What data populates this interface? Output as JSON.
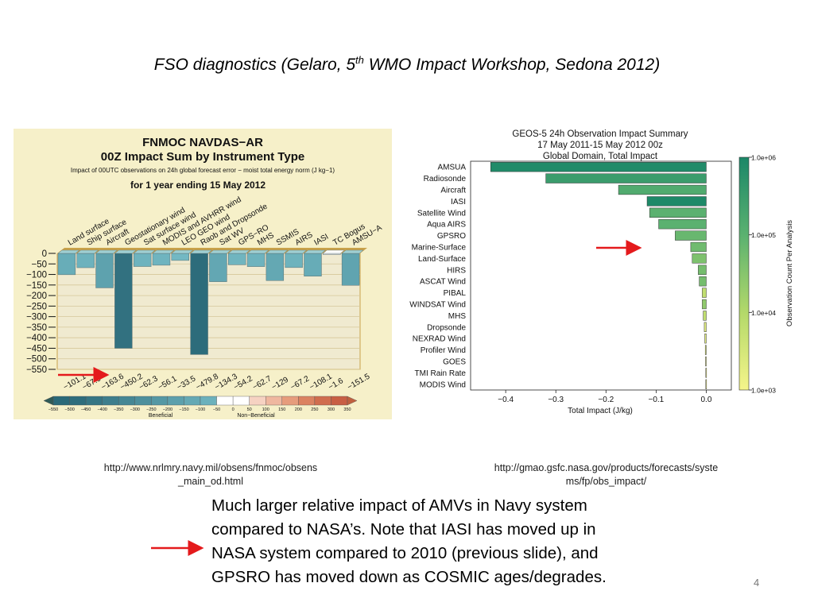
{
  "slide": {
    "title_main": "FSO diagnostics (Gelaro, 5",
    "title_sup": "th",
    "title_rest": " WMO Impact Workshop, Sedona 2012)",
    "url_left_line1": "http://www.nrlmry.navy.mil/obsens/fnmoc/obsens",
    "url_left_line2": "_main_od.html",
    "url_right_line1": "http://gmao.gsfc.nasa.gov/products/forecasts/syste",
    "url_right_line2": "ms/fp/obs_impact/",
    "bullet_lines": [
      "Much larger relative impact of AMVs in Navy system",
      "compared to NASA’s.   Note that IASI has moved up in",
      "NASA system compared to 2010 (previous slide), and",
      "GPSRO has moved down as COSMIC ages/degrades."
    ],
    "page_number": "4"
  },
  "chart_data": [
    {
      "type": "bar",
      "title": "FNMOC NAVDAS−AR",
      "subtitle": "00Z Impact Sum by Instrument Type",
      "description": "Impact of 00UTC observations on 24h global forecast error − moist total energy norm (J kg−1)",
      "period": "for 1 year ending 15 May 2012",
      "categories": [
        "Land surface",
        "Ship surface",
        "Aircraft",
        "Geostationary wind",
        "Sat surface wind",
        "MODIS and AVHRR wind",
        "LEO GEO wind",
        "Raob and Dropsonde",
        "Sat WV",
        "GPS−RO",
        "MHS",
        "SSMIS",
        "AIRS",
        "IASI",
        "TC Bogus",
        "AMSU−A"
      ],
      "values": [
        -101.1,
        -67.9,
        -163.6,
        -450.2,
        -62.3,
        -56.1,
        -33.5,
        -479.8,
        -134.3,
        -54.2,
        -62.7,
        -129,
        -67.2,
        -108.1,
        -1.6,
        -151.5
      ],
      "value_labels": [
        "−101.1",
        "−67.9",
        "−163.6",
        "−450.2",
        "−62.3",
        "−56.1",
        "−33.5",
        "−479.8",
        "−134.3",
        "−54.2",
        "−62.7",
        "−129",
        "−67.2",
        "−108.1",
        "−1.6",
        "−151.5"
      ],
      "yticks": [
        "0",
        "−50",
        "−100",
        "−150",
        "−200",
        "−250",
        "−300",
        "−350",
        "−400",
        "−450",
        "−500",
        "−550"
      ],
      "ylim": [
        -550,
        0
      ],
      "colorbar": {
        "ticks": [
          "−550",
          "−500",
          "−450",
          "−400",
          "−350",
          "−300",
          "−250",
          "−200",
          "−150",
          "−100",
          "−50",
          "0",
          "50",
          "100",
          "150",
          "200",
          "250",
          "300",
          "350"
        ],
        "label_left": "Beneficial",
        "label_right": "Non−Beneficial"
      },
      "highlighted_category": "Aircraft",
      "colors": {
        "background": "#f6f0c9",
        "plot": "#f0ead0",
        "grid": "#d6c89a",
        "frame": "#c9a24a"
      }
    },
    {
      "type": "bar",
      "orientation": "horizontal",
      "title": "GEOS-5 24h Observation Impact Summary",
      "subtitle1": "17 May 2011-15 May 2012 00z",
      "subtitle2": "Global Domain, Total Impact",
      "xlabel": "Total Impact (J/kg)",
      "xlim": [
        -0.47,
        0.05
      ],
      "xticks": [
        "−0.4",
        "−0.3",
        "−0.2",
        "−0.1",
        "0.0"
      ],
      "categories": [
        "AMSUA",
        "Radiosonde",
        "Aircraft",
        "IASI",
        "Satellite Wind",
        "Aqua AIRS",
        "GPSRO",
        "Marine-Surface",
        "Land-Surface",
        "HIRS",
        "ASCAT Wind",
        "PIBAL",
        "WINDSAT Wind",
        "MHS",
        "Dropsonde",
        "NEXRAD Wind",
        "Profiler Wind",
        "GOES",
        "TMI Rain Rate",
        "MODIS Wind"
      ],
      "values": [
        -0.43,
        -0.32,
        -0.175,
        -0.118,
        -0.113,
        -0.095,
        -0.062,
        -0.031,
        -0.028,
        -0.016,
        -0.014,
        -0.008,
        -0.008,
        -0.006,
        -0.004,
        -0.003,
        -0.002,
        -0.0015,
        -0.001,
        -0.001
      ],
      "obs_count_log10": [
        5.9,
        5.5,
        5.15,
        5.95,
        5.0,
        5.0,
        4.85,
        4.75,
        4.6,
        4.7,
        4.7,
        3.8,
        4.4,
        3.8,
        3.3,
        3.3,
        3.3,
        3.2,
        3.0,
        3.0
      ],
      "colorbar": {
        "label": "Observation Count Per Analysis",
        "ticks": [
          "1.0e+03",
          "1.0e+04",
          "1.0e+05",
          "1.0e+06"
        ],
        "range_log10": [
          3,
          6
        ]
      },
      "highlighted_category": "GPSRO"
    }
  ]
}
